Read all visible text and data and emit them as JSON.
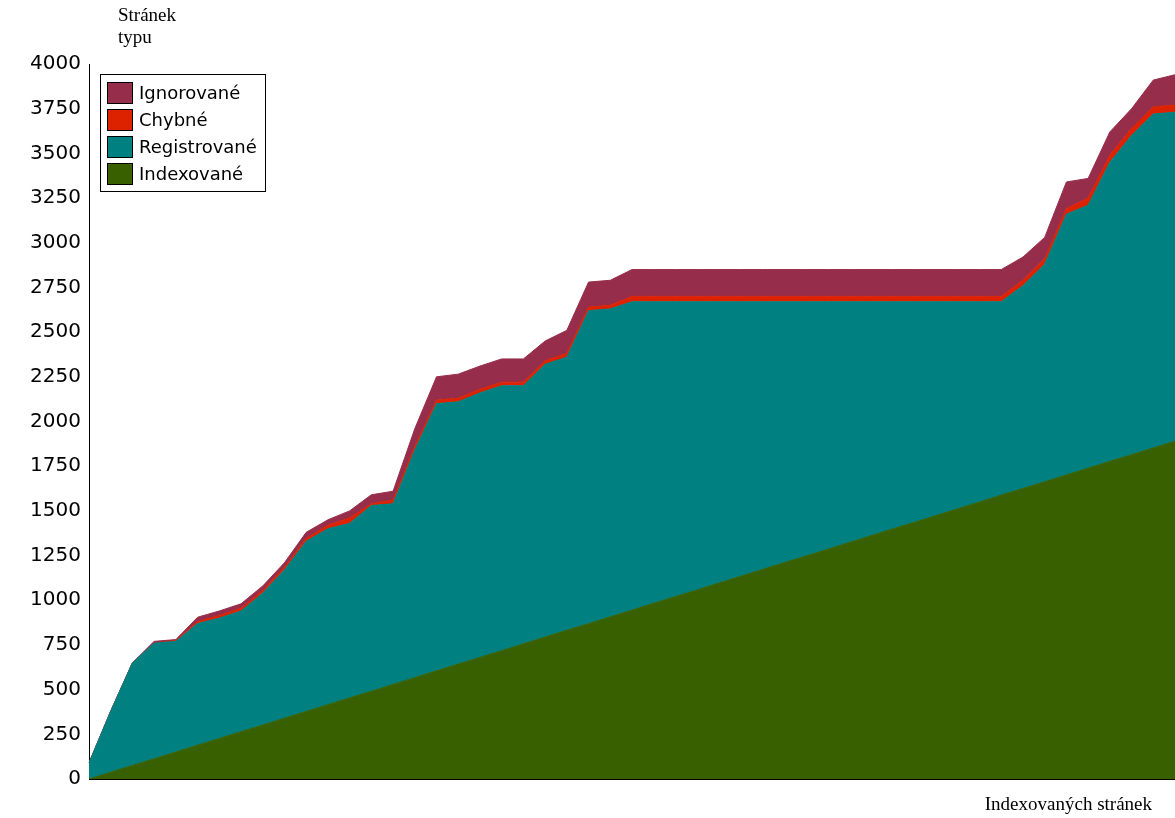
{
  "chart_data": {
    "type": "area",
    "stacked": true,
    "xlabel": "Indexovaných stránek",
    "ylabel": "Stránek typu",
    "categories": [
      null,
      null,
      null,
      null,
      null,
      null,
      null,
      null,
      null,
      null,
      null,
      null,
      null,
      null,
      null,
      null,
      null,
      null,
      null,
      null,
      null,
      null,
      null,
      null,
      null,
      null,
      null,
      null,
      null,
      null,
      null,
      null,
      null,
      null,
      null,
      null,
      null,
      null,
      null,
      null,
      null,
      null,
      null,
      null,
      null,
      null,
      null,
      null,
      null,
      null,
      null
    ],
    "series": [
      {
        "name": "Indexované",
        "color": "#386000",
        "values": [
          0,
          38,
          76,
          113,
          151,
          189,
          227,
          265,
          302,
          340,
          378,
          416,
          454,
          491,
          529,
          567,
          605,
          643,
          680,
          718,
          756,
          794,
          832,
          869,
          907,
          945,
          983,
          1021,
          1058,
          1096,
          1134,
          1172,
          1210,
          1247,
          1285,
          1323,
          1361,
          1399,
          1436,
          1474,
          1512,
          1550,
          1588,
          1625,
          1663,
          1701,
          1739,
          1777,
          1814,
          1852,
          1890
        ]
      },
      {
        "name": "Registrované",
        "color": "#008080",
        "values": [
          90,
          342,
          574,
          647,
          619,
          681,
          673,
          675,
          738,
          830,
          952,
          984,
          976,
          1039,
          1011,
          1273,
          1495,
          1467,
          1480,
          1482,
          1444,
          1526,
          1528,
          1751,
          1723,
          1725,
          1687,
          1649,
          1612,
          1574,
          1536,
          1498,
          1460,
          1423,
          1385,
          1347,
          1309,
          1271,
          1234,
          1196,
          1158,
          1120,
          1082,
          1135,
          1217,
          1459,
          1471,
          1673,
          1786,
          1868,
          1840
        ]
      },
      {
        "name": "Chybné",
        "color": "#dd2200",
        "values": [
          0,
          0,
          0,
          0,
          5,
          10,
          15,
          15,
          15,
          15,
          15,
          20,
          30,
          10,
          20,
          20,
          20,
          20,
          20,
          20,
          20,
          20,
          20,
          20,
          20,
          30,
          30,
          30,
          30,
          30,
          30,
          30,
          30,
          30,
          30,
          30,
          30,
          30,
          30,
          30,
          30,
          30,
          30,
          30,
          30,
          30,
          40,
          40,
          40,
          40,
          40
        ]
      },
      {
        "name": "Ignorované",
        "color": "#962d4b",
        "values": [
          0,
          0,
          0,
          10,
          5,
          25,
          25,
          25,
          25,
          25,
          35,
          30,
          40,
          50,
          50,
          100,
          130,
          135,
          130,
          130,
          130,
          110,
          130,
          140,
          140,
          150,
          150,
          150,
          150,
          150,
          150,
          150,
          150,
          150,
          150,
          150,
          150,
          150,
          150,
          150,
          150,
          150,
          150,
          130,
          120,
          150,
          110,
          130,
          110,
          150,
          170
        ]
      }
    ],
    "ylim": [
      0,
      4000
    ],
    "yticks": [
      0,
      250,
      500,
      750,
      1000,
      1250,
      1500,
      1750,
      2000,
      2250,
      2500,
      2750,
      3000,
      3250,
      3500,
      3750,
      4000
    ],
    "grid": false,
    "legend": "top left",
    "tick_labels": "y",
    "marker": "none"
  }
}
